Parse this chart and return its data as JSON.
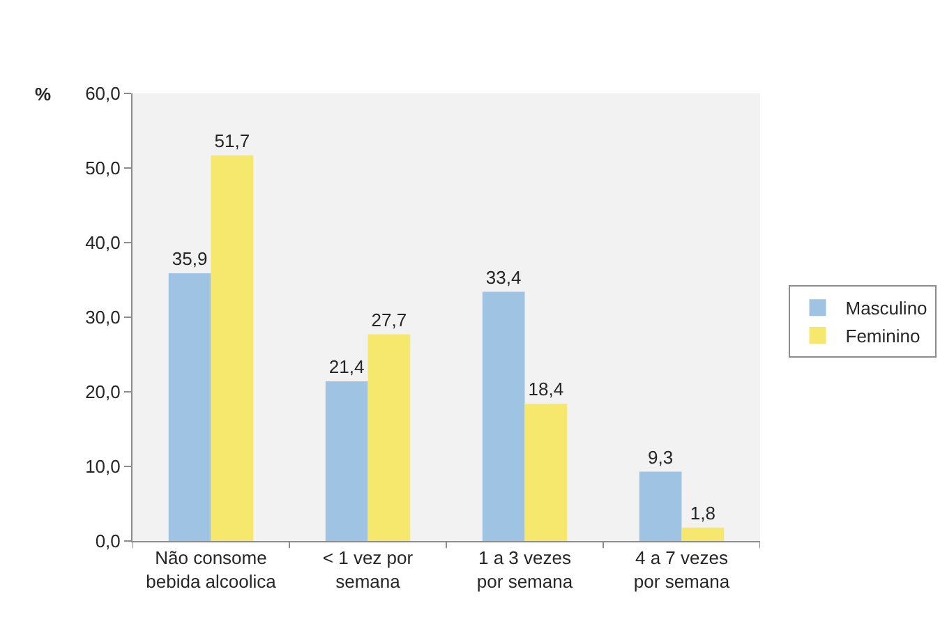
{
  "chart_data": {
    "type": "bar",
    "ylabel": "%",
    "categories": [
      "Não consome bebida alcoolica",
      "< 1 vez por semana",
      "1 a 3 vezes por semana",
      "4 a 7 vezes por semana"
    ],
    "series": [
      {
        "name": "Masculino",
        "color": "#9fc3e3",
        "values": [
          35.9,
          21.4,
          33.4,
          9.3
        ],
        "value_labels": [
          "35,9",
          "21,4",
          "33,4",
          "9,3"
        ]
      },
      {
        "name": "Feminino",
        "color": "#f5e86c",
        "values": [
          51.7,
          27.7,
          18.4,
          1.8
        ],
        "value_labels": [
          "51,7",
          "27,7",
          "18,4",
          "1,8"
        ]
      }
    ],
    "ylim": [
      0,
      60
    ],
    "yticks": [
      {
        "value": 0,
        "label": "0,0"
      },
      {
        "value": 10,
        "label": "10,0"
      },
      {
        "value": 20,
        "label": "20,0"
      },
      {
        "value": 30,
        "label": "30,0"
      },
      {
        "value": 40,
        "label": "40,0"
      },
      {
        "value": 50,
        "label": "50,0"
      },
      {
        "value": 60,
        "label": "60,0"
      }
    ],
    "legend": "right"
  }
}
